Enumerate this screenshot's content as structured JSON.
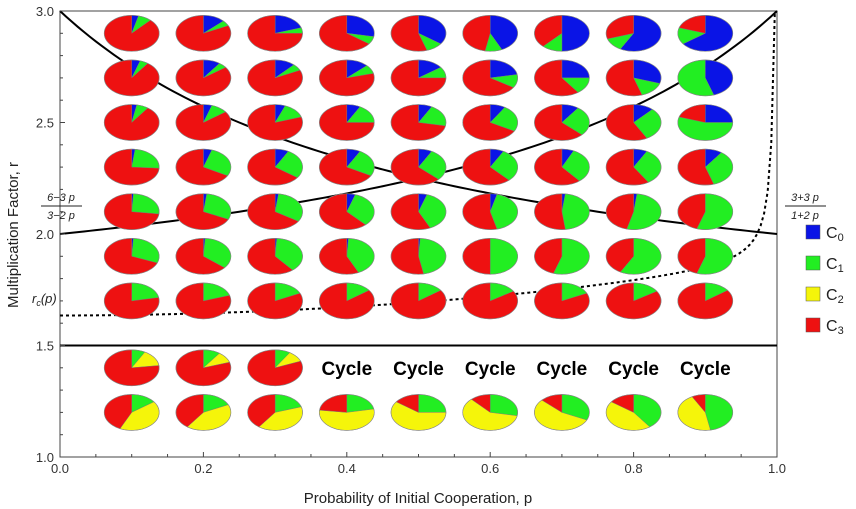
{
  "chart_data": {
    "type": "pie-grid",
    "xlabel": "Probability of Initial Cooperation, p",
    "ylabel": "Multiplication Factor, r",
    "xlim": [
      0.0,
      1.0
    ],
    "ylim": [
      1.0,
      3.0
    ],
    "xticks": [
      "0.0",
      "0.2",
      "0.4",
      "0.6",
      "0.8",
      "1.0"
    ],
    "yticks": [
      "1.0",
      "1.5",
      "2.0",
      "2.5",
      "3.0"
    ],
    "x_values": [
      0.1,
      0.2,
      0.3,
      0.4,
      0.5,
      0.6,
      0.7,
      0.8,
      0.9
    ],
    "r_values": [
      2.9,
      2.7,
      2.5,
      2.3,
      2.1,
      1.9,
      1.7,
      1.4,
      1.2
    ],
    "legend": [
      {
        "key": "C0",
        "base": "C",
        "sub": "0",
        "color": "#0a14e6"
      },
      {
        "key": "C1",
        "base": "C",
        "sub": "1",
        "color": "#22ee22"
      },
      {
        "key": "C2",
        "base": "C",
        "sub": "2",
        "color": "#f5f50a"
      },
      {
        "key": "C3",
        "base": "C",
        "sub": "3",
        "color": "#ee1111"
      }
    ],
    "legend_position": "right",
    "pies": [
      [
        [
          0.04,
          0.08,
          0,
          0.88
        ],
        [
          0.13,
          0.05,
          0,
          0.82
        ],
        [
          0.2,
          0.05,
          0,
          0.75
        ],
        [
          0.28,
          0.07,
          0,
          0.65
        ],
        [
          0.35,
          0.1,
          0,
          0.55
        ],
        [
          0.43,
          0.1,
          0,
          0.47
        ],
        [
          0.5,
          0.12,
          0,
          0.38
        ],
        [
          0.58,
          0.12,
          0,
          0.3
        ],
        [
          0.65,
          0.15,
          0,
          0.2
        ]
      ],
      [
        [
          0.05,
          0.05,
          0,
          0.9
        ],
        [
          0.1,
          0.05,
          0,
          0.85
        ],
        [
          0.12,
          0.06,
          0,
          0.82
        ],
        [
          0.13,
          0.08,
          0,
          0.79
        ],
        [
          0.15,
          0.1,
          0,
          0.75
        ],
        [
          0.22,
          0.12,
          0,
          0.66
        ],
        [
          0.25,
          0.15,
          0,
          0.6
        ],
        [
          0.3,
          0.15,
          0,
          0.55
        ],
        [
          0.45,
          0.55,
          0,
          0
        ]
      ],
      [
        [
          0.03,
          0.07,
          0,
          0.9
        ],
        [
          0.05,
          0.1,
          0,
          0.85
        ],
        [
          0.06,
          0.14,
          0,
          0.8
        ],
        [
          0.08,
          0.17,
          0,
          0.75
        ],
        [
          0.08,
          0.2,
          0,
          0.72
        ],
        [
          0.09,
          0.24,
          0,
          0.67
        ],
        [
          0.1,
          0.27,
          0,
          0.63
        ],
        [
          0.12,
          0.3,
          0,
          0.58
        ],
        [
          0.25,
          0.55,
          0,
          0.2
        ]
      ],
      [
        [
          0.02,
          0.24,
          0,
          0.74
        ],
        [
          0.05,
          0.28,
          0,
          0.67
        ],
        [
          0.08,
          0.27,
          0,
          0.65
        ],
        [
          0.08,
          0.25,
          0,
          0.67
        ],
        [
          0.08,
          0.29,
          0,
          0.63
        ],
        [
          0.08,
          0.3,
          0,
          0.62
        ],
        [
          0.07,
          0.32,
          0,
          0.61
        ],
        [
          0.08,
          0.33,
          0,
          0.59
        ],
        [
          0.1,
          0.35,
          0,
          0.55
        ]
      ],
      [
        [
          0.01,
          0.26,
          0,
          0.73
        ],
        [
          0.02,
          0.3,
          0,
          0.68
        ],
        [
          0.02,
          0.32,
          0,
          0.66
        ],
        [
          0.05,
          0.33,
          0,
          0.62
        ],
        [
          0.05,
          0.38,
          0,
          0.57
        ],
        [
          0.04,
          0.42,
          0,
          0.54
        ],
        [
          0.02,
          0.46,
          0,
          0.52
        ],
        [
          0.02,
          0.52,
          0,
          0.46
        ],
        [
          0,
          0.55,
          0,
          0.45
        ]
      ],
      [
        [
          0.01,
          0.3,
          0,
          0.69
        ],
        [
          0.01,
          0.35,
          0,
          0.64
        ],
        [
          0.01,
          0.38,
          0,
          0.61
        ],
        [
          0.01,
          0.42,
          0,
          0.57
        ],
        [
          0.01,
          0.46,
          0,
          0.53
        ],
        [
          0,
          0.5,
          0,
          0.5
        ],
        [
          0,
          0.55,
          0,
          0.45
        ],
        [
          0,
          0.58,
          0,
          0.42
        ],
        [
          0,
          0.55,
          0,
          0.45
        ]
      ],
      [
        [
          0,
          0.22,
          0,
          0.78
        ],
        [
          0,
          0.2,
          0,
          0.8
        ],
        [
          0,
          0.18,
          0,
          0.82
        ],
        [
          0,
          0.15,
          0,
          0.85
        ],
        [
          0,
          0.15,
          0,
          0.85
        ],
        [
          0,
          0.16,
          0,
          0.84
        ],
        [
          0,
          0.18,
          0,
          0.82
        ],
        [
          0,
          0.16,
          0,
          0.84
        ],
        [
          0,
          0.15,
          0,
          0.85
        ]
      ],
      [
        [
          0,
          0.08,
          0.15,
          0.77
        ],
        [
          0,
          0.1,
          0.1,
          0.8
        ],
        [
          0,
          0.09,
          0.1,
          0.81
        ],
        null,
        null,
        null,
        null,
        null,
        null
      ],
      [
        [
          0,
          0.15,
          0.42,
          0.43
        ],
        [
          0,
          0.18,
          0.42,
          0.4
        ],
        [
          0,
          0.2,
          0.4,
          0.4
        ],
        [
          0,
          0.22,
          0.55,
          0.23
        ],
        [
          0,
          0.25,
          0.6,
          0.15
        ],
        [
          0,
          0.28,
          0.6,
          0.12
        ],
        [
          0,
          0.32,
          0.55,
          0.13
        ],
        [
          0,
          0.4,
          0.45,
          0.15
        ],
        [
          0,
          0.47,
          0.45,
          0.08
        ]
      ]
    ],
    "cycle_label": "Cycle",
    "curves": [
      {
        "name": "6-3p/(3-2p)",
        "type": "solid"
      },
      {
        "name": "3+3p/(1+2p)",
        "type": "solid"
      },
      {
        "name": "r = 1.5",
        "type": "solid",
        "y": 1.5
      },
      {
        "name": "r_c(p)",
        "type": "dashed"
      }
    ],
    "annotations": {
      "left_fraction": {
        "num": "6−3 p",
        "den": "3−2 p"
      },
      "right_fraction": {
        "num": "3+3 p",
        "den": "1+2 p"
      },
      "rc_label": {
        "base": "r",
        "sub": "c",
        "arg": "(p)"
      }
    },
    "grid": false
  }
}
